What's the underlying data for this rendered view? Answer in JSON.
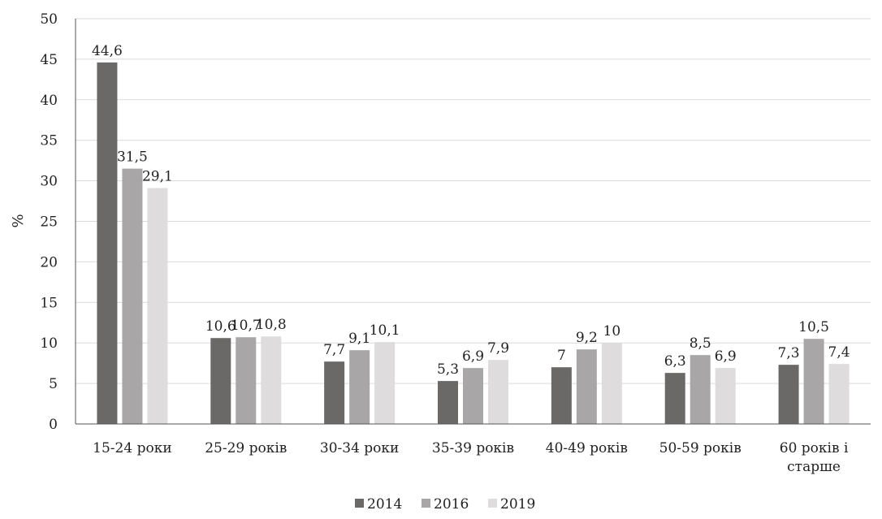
{
  "chart_data": {
    "type": "bar",
    "title": "",
    "xlabel": "",
    "ylabel": "%",
    "ylim": [
      0,
      50
    ],
    "yticks": [
      0,
      5,
      10,
      15,
      20,
      25,
      30,
      35,
      40,
      45,
      50
    ],
    "grid": true,
    "legend_position": "bottom",
    "categories": [
      [
        "15-24 роки"
      ],
      [
        "25-29 років"
      ],
      [
        "30-34 роки"
      ],
      [
        "35-39 років"
      ],
      [
        "40-49 років"
      ],
      [
        "50-59 років"
      ],
      [
        "60 років і",
        "старше"
      ]
    ],
    "series": [
      {
        "name": "2014",
        "color": "#6b6868",
        "values": [
          44.6,
          10.6,
          7.7,
          5.3,
          7,
          6.3,
          7.3
        ],
        "labels": [
          "44,6",
          "10,6",
          "7,7",
          "5,3",
          "7",
          "6,3",
          "7,3"
        ]
      },
      {
        "name": "2016",
        "color": "#a8a6a6",
        "values": [
          31.5,
          10.7,
          9.1,
          6.9,
          9.2,
          8.5,
          10.5
        ],
        "labels": [
          "31,5",
          "10,7",
          "9,1",
          "6,9",
          "9,2",
          "8,5",
          "10,5"
        ]
      },
      {
        "name": "2019",
        "color": "#dedcdc",
        "values": [
          29.1,
          10.8,
          10.1,
          7.9,
          10,
          6.9,
          7.4
        ],
        "labels": [
          "29,1",
          "10,8",
          "10,1",
          "7,9",
          "10",
          "6,9",
          "7,4"
        ]
      }
    ]
  }
}
